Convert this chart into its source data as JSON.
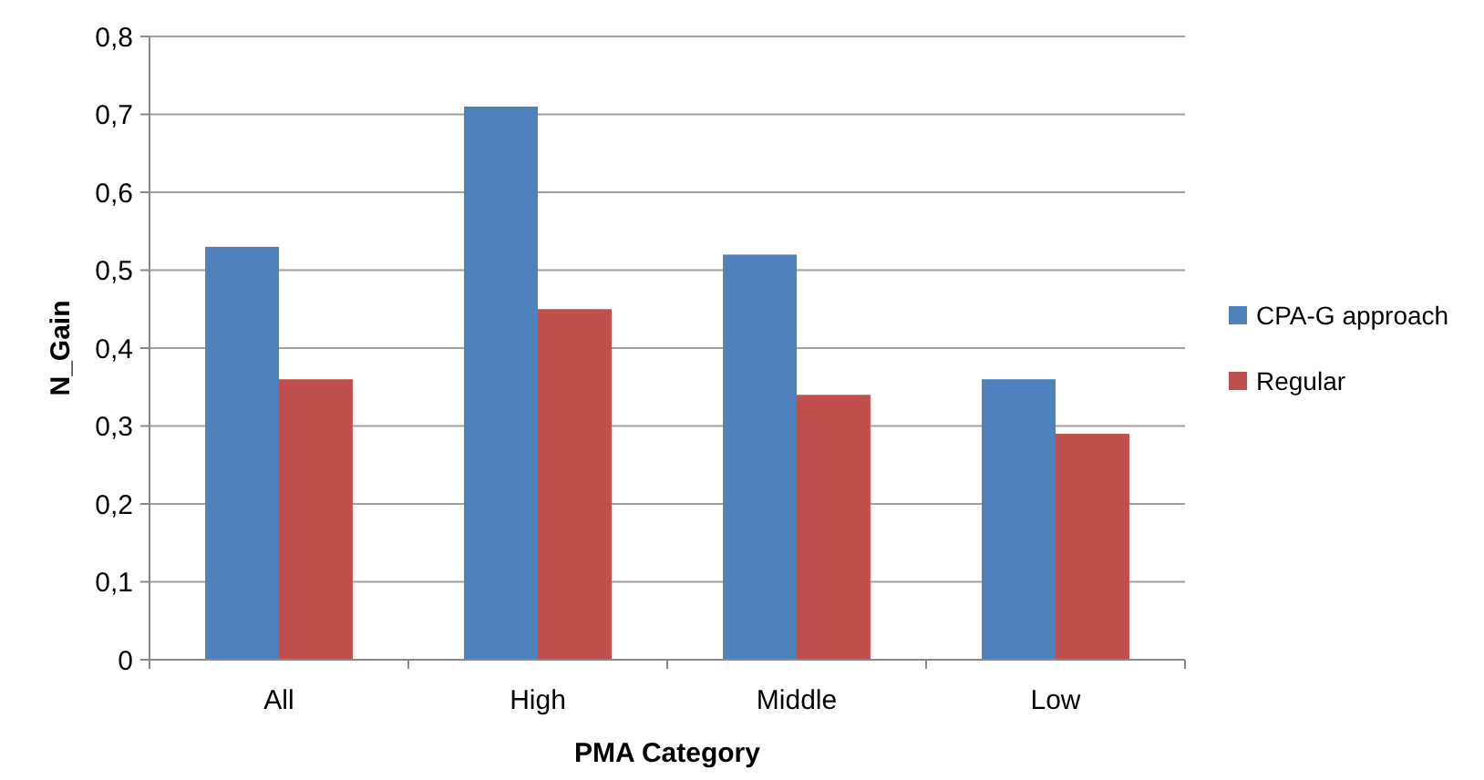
{
  "chart_data": {
    "type": "bar",
    "xlabel": "PMA Category",
    "ylabel": "N_Gain",
    "categories": [
      "All",
      "High",
      "Middle",
      "Low"
    ],
    "series": [
      {
        "name": "CPA-G approach",
        "color": "#4f81bd",
        "values": [
          0.53,
          0.71,
          0.52,
          0.36
        ]
      },
      {
        "name": "Regular",
        "color": "#c0504d",
        "values": [
          0.36,
          0.45,
          0.34,
          0.29
        ]
      }
    ],
    "ylim": [
      0,
      0.8
    ],
    "yticks": [
      0,
      {
        "value": 0.1,
        "label": "0,1"
      },
      {
        "value": 0.2,
        "label": "0,2"
      },
      {
        "value": 0.3,
        "label": "0,3"
      },
      {
        "value": 0.4,
        "label": "0,4"
      },
      {
        "value": 0.5,
        "label": "0,5"
      },
      {
        "value": 0.6,
        "label": "0,6"
      },
      {
        "value": 0.7,
        "label": "0,7"
      },
      {
        "value": 0.8,
        "label": "0,8"
      }
    ],
    "grid": "y",
    "legend": "right"
  }
}
